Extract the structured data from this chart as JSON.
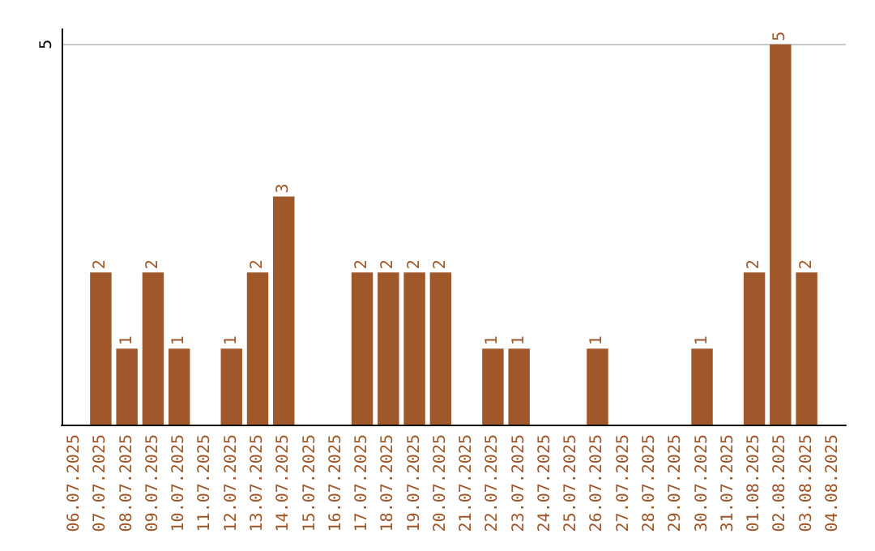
{
  "chart_data": {
    "type": "bar",
    "categories": [
      "06.07.2025",
      "07.07.2025",
      "08.07.2025",
      "09.07.2025",
      "10.07.2025",
      "11.07.2025",
      "12.07.2025",
      "13.07.2025",
      "14.07.2025",
      "15.07.2025",
      "16.07.2025",
      "17.07.2025",
      "18.07.2025",
      "19.07.2025",
      "20.07.2025",
      "21.07.2025",
      "22.07.2025",
      "23.07.2025",
      "24.07.2025",
      "25.07.2025",
      "26.07.2025",
      "27.07.2025",
      "28.07.2025",
      "29.07.2025",
      "30.07.2025",
      "31.07.2025",
      "01.08.2025",
      "02.08.2025",
      "03.08.2025",
      "04.08.2025"
    ],
    "values": [
      0,
      2,
      1,
      2,
      1,
      0,
      1,
      2,
      3,
      0,
      0,
      2,
      2,
      2,
      2,
      0,
      1,
      1,
      0,
      0,
      1,
      0,
      0,
      0,
      1,
      0,
      2,
      5,
      2,
      0
    ],
    "value_labels": [
      null,
      "2",
      "1",
      "2",
      "1",
      null,
      "1",
      "2",
      "3",
      null,
      null,
      "2",
      "2",
      "2",
      "2",
      null,
      "1",
      "1",
      null,
      null,
      "1",
      null,
      null,
      null,
      "1",
      null,
      "2",
      "5",
      "2",
      null
    ],
    "color": "#a0572a",
    "ylim": [
      0,
      5.2
    ],
    "yticks": [
      5
    ],
    "grid": "y"
  }
}
